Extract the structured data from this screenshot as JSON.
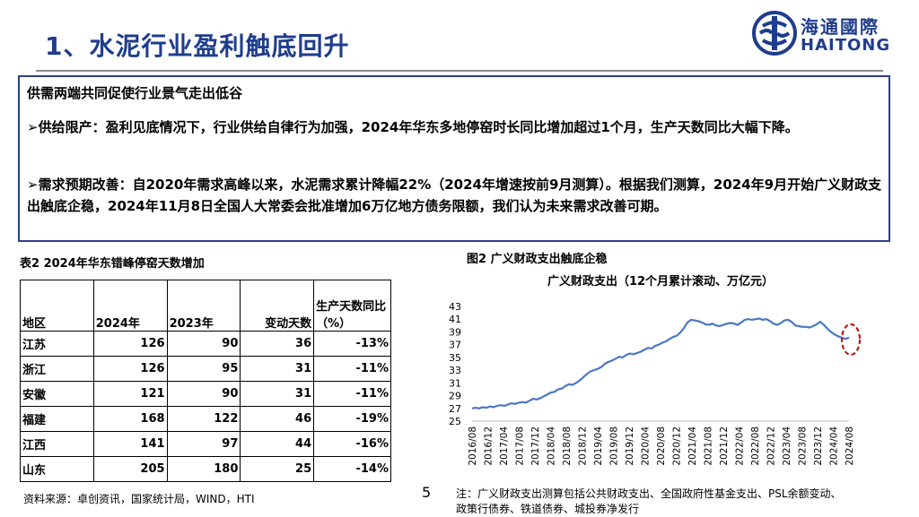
{
  "header": {
    "title": "1、水泥行业盈利触底回升"
  },
  "logo": {
    "cn": "海通國際",
    "en": "HAITONG"
  },
  "summary": {
    "line1": "供需两端共同促使行业景气走出低谷",
    "line2": "➢供给限产：盈利见底情况下，行业供给自律行为加强，2024年华东多地停窑时长同比增加超过1个月，生产天数同比大幅下降。",
    "line3": "➢需求预期改善：自2020年需求高峰以来，水泥需求累计降幅22%（2024年增速按前9月测算）。根据我们测算，2024年9月开始广义财政支出触底企稳，2024年11月8日全国人大常委会批准增加6万亿地方债务限额，我们认为未来需求改善可期。"
  },
  "table": {
    "title": "表2  2024年华东错峰停窑天数增加",
    "headers": [
      "地区",
      "2024年",
      "2023年",
      "变动天数",
      "生产天数同比（%）"
    ],
    "rows": [
      [
        "江苏",
        "126",
        "90",
        "36",
        "-13%"
      ],
      [
        "浙江",
        "126",
        "95",
        "31",
        "-11%"
      ],
      [
        "安徽",
        "121",
        "90",
        "31",
        "-11%"
      ],
      [
        "福建",
        "168",
        "122",
        "46",
        "-19%"
      ],
      [
        "江西",
        "141",
        "97",
        "44",
        "-16%"
      ],
      [
        "山东",
        "205",
        "180",
        "25",
        "-14%"
      ]
    ]
  },
  "source": "资料来源：卓创资讯，国家统计局，WIND，HTI",
  "page_number": "5",
  "figure": {
    "caption": "图2  广义财政支出触底企稳"
  },
  "note": "注：广义财政支出测算包括公共财政支出、全国政府性基金支出、PSL余额变动、政策行债券、铁道债券、城投券净发行",
  "chart_data": {
    "type": "line",
    "title": "广义财政支出（12个月累计滚动、万亿元）",
    "xlabel": "",
    "ylabel": "",
    "ylim": [
      25,
      43
    ],
    "yticks": [
      25,
      27,
      29,
      31,
      33,
      35,
      37,
      39,
      41,
      43
    ],
    "x_tick_labels": [
      "2016/08",
      "2016/12",
      "2017/04",
      "2017/08",
      "2017/12",
      "2018/04",
      "2018/08",
      "2018/12",
      "2019/04",
      "2019/08",
      "2019/12",
      "2020/04",
      "2020/08",
      "2020/12",
      "2021/04",
      "2021/08",
      "2021/12",
      "2022/04",
      "2022/08",
      "2022/12",
      "2023/04",
      "2023/08",
      "2023/12",
      "2024/04",
      "2024/08"
    ],
    "grid": false,
    "legend": "none",
    "color": "#4a78c2",
    "highlight_color": "#c00000",
    "series": [
      {
        "values": [
          27.0,
          27.1,
          27.0,
          27.2,
          27.1,
          27.3,
          27.2,
          27.4,
          27.5,
          27.4,
          27.6,
          27.8,
          27.7,
          27.9,
          28.0,
          27.9,
          28.2,
          28.5,
          28.4,
          28.6,
          28.9,
          29.2,
          29.5,
          29.6,
          30.0,
          30.1,
          30.5,
          30.8,
          30.7,
          31.0,
          31.4,
          31.9,
          32.4,
          32.8,
          33.0,
          33.2,
          33.5,
          34.0,
          34.3,
          34.5,
          34.8,
          35.1,
          35.0,
          35.4,
          35.6,
          35.5,
          35.7,
          35.9,
          36.2,
          36.5,
          36.4,
          36.8,
          37.0,
          37.3,
          37.5,
          37.9,
          38.2,
          38.4,
          38.9,
          39.6,
          40.5,
          40.9,
          40.8,
          40.7,
          40.5,
          40.2,
          40.1,
          40.3,
          40.0,
          39.9,
          40.1,
          40.3,
          40.4,
          40.3,
          40.1,
          40.5,
          40.9,
          41.0,
          40.9,
          41.0,
          41.1,
          40.9,
          41.0,
          40.7,
          40.3,
          40.1,
          40.4,
          40.8,
          40.9,
          40.6,
          40.0,
          39.9,
          39.8,
          39.8,
          39.7,
          39.9,
          40.2,
          40.6,
          40.1,
          39.5,
          39.0,
          38.6,
          38.3,
          38.1,
          37.9,
          38.1
        ]
      }
    ],
    "highlight": "2024/08"
  }
}
